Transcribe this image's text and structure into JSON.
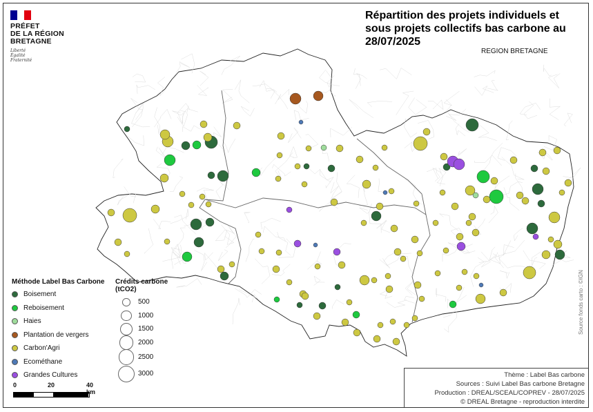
{
  "title": "Répartition des projets individuels et sous projets collectifs bas carbone au 28/07/2025",
  "region_label": "REGION BRETAGNE",
  "logo": {
    "lines": [
      "PRÉFET",
      "DE LA RÉGION",
      "BRETAGNE"
    ],
    "motto": [
      "Liberté",
      "Égalité",
      "Fraternité"
    ],
    "flag_colors": [
      "#000091",
      "#ffffff",
      "#e1000f"
    ]
  },
  "legend_methods": {
    "title": "Méthode Label Bas Carbone",
    "items": [
      {
        "label": "Boisement",
        "color": "#2d6a3c"
      },
      {
        "label": "Reboisement",
        "color": "#1ec93f"
      },
      {
        "label": "Haies",
        "color": "#9fdc9c"
      },
      {
        "label": "Plantation de vergers",
        "color": "#a6581f"
      },
      {
        "label": "Carbon'Agri",
        "color": "#cdc842"
      },
      {
        "label": "Ecométhane",
        "color": "#4e79b6"
      },
      {
        "label": "Grandes Cultures",
        "color": "#9a4fe0"
      }
    ]
  },
  "legend_sizes": {
    "title": "Crédits carbone (tCO2)",
    "items": [
      {
        "label": "500",
        "value": 500
      },
      {
        "label": "1000",
        "value": 1000
      },
      {
        "label": "1500",
        "value": 1500
      },
      {
        "label": "2000",
        "value": 2000
      },
      {
        "label": "2500",
        "value": 2500
      },
      {
        "label": "3000",
        "value": 3000
      }
    ]
  },
  "scale_bar": {
    "labels": [
      "0",
      "20",
      "40 km"
    ]
  },
  "source_side": "Source fonds carto : ©IGN",
  "info": {
    "theme": "Thème : Label Bas carbone",
    "sources": "Sources : Suivi Label Bas carbone Bretagne",
    "production": "Production :    DREAL/SCEAL/COPREV - 28/07/2025",
    "copyright": "© DREAL Bretagne - reproduction interdite"
  }
}
